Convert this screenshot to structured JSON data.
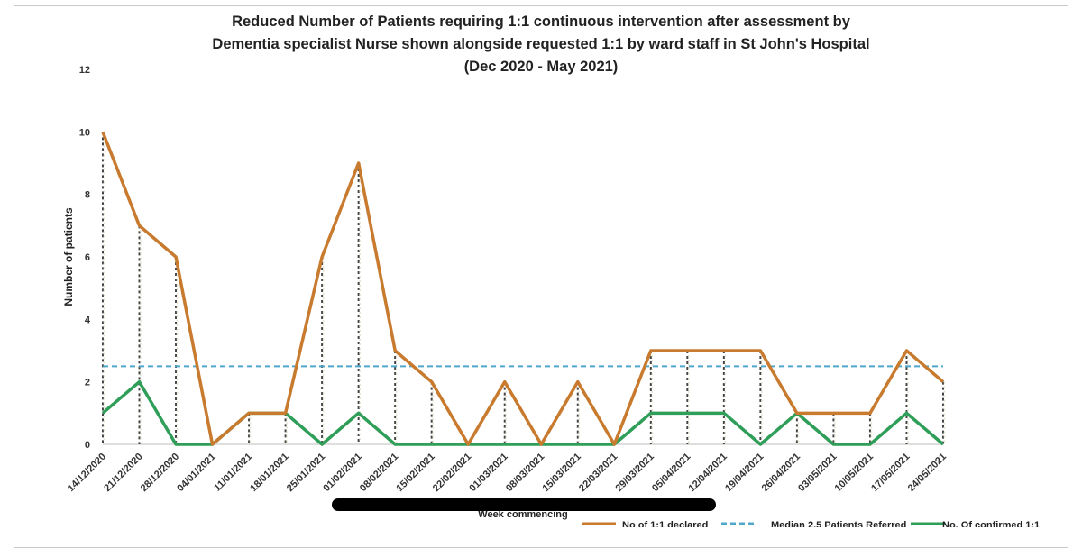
{
  "chart_data": {
    "type": "line",
    "title": "Reduced Number of Patients requiring 1:1 continuous intervention after assessment by Dementia specialist Nurse shown alongside requested 1:1 by ward staff in St John's Hospital (Dec 2020 - May 2021)",
    "xlabel": "Week commencing",
    "ylabel": "Number of patients",
    "ylim": [
      0,
      12
    ],
    "yticks": [
      0,
      2,
      4,
      6,
      8,
      10,
      12
    ],
    "grid": false,
    "legend_position": "bottom",
    "categories": [
      "14/12/2020",
      "21/12/2020",
      "28/12/2020",
      "04/01/2021",
      "11/01/2021",
      "18/01/2021",
      "25/01/2021",
      "01/02/2021",
      "08/02/2021",
      "15/02/2021",
      "22/02/2021",
      "01/03/2021",
      "08/03/2021",
      "15/03/2021",
      "22/03/2021",
      "29/03/2021",
      "05/04/2021",
      "12/04/2021",
      "19/04/2021",
      "26/04/2021",
      "03/05/2021",
      "10/05/2021",
      "17/05/2021",
      "24/05/2021"
    ],
    "series": [
      {
        "name": "No of 1:1 declared",
        "color": "#c87a2e",
        "style": "solid",
        "values": [
          10,
          7,
          6,
          0,
          1,
          1,
          6,
          9,
          3,
          2,
          0,
          2,
          0,
          2,
          0,
          3,
          3,
          3,
          3,
          1,
          1,
          1,
          3,
          2
        ]
      },
      {
        "name": "Median 2.5 Patients Referred",
        "color": "#4fa8cc",
        "style": "dashed",
        "values": [
          2.5,
          2.5,
          2.5,
          2.5,
          2.5,
          2.5,
          2.5,
          2.5,
          2.5,
          2.5,
          2.5,
          2.5,
          2.5,
          2.5,
          2.5,
          2.5,
          2.5,
          2.5,
          2.5,
          2.5,
          2.5,
          2.5,
          2.5,
          2.5
        ]
      },
      {
        "name": "No. Of confirmed 1:1",
        "color": "#2f9e58",
        "style": "solid",
        "values": [
          1,
          2,
          0,
          0,
          1,
          1,
          0,
          1,
          0,
          0,
          0,
          0,
          0,
          0,
          0,
          1,
          1,
          1,
          0,
          1,
          0,
          0,
          1,
          0
        ]
      }
    ]
  }
}
